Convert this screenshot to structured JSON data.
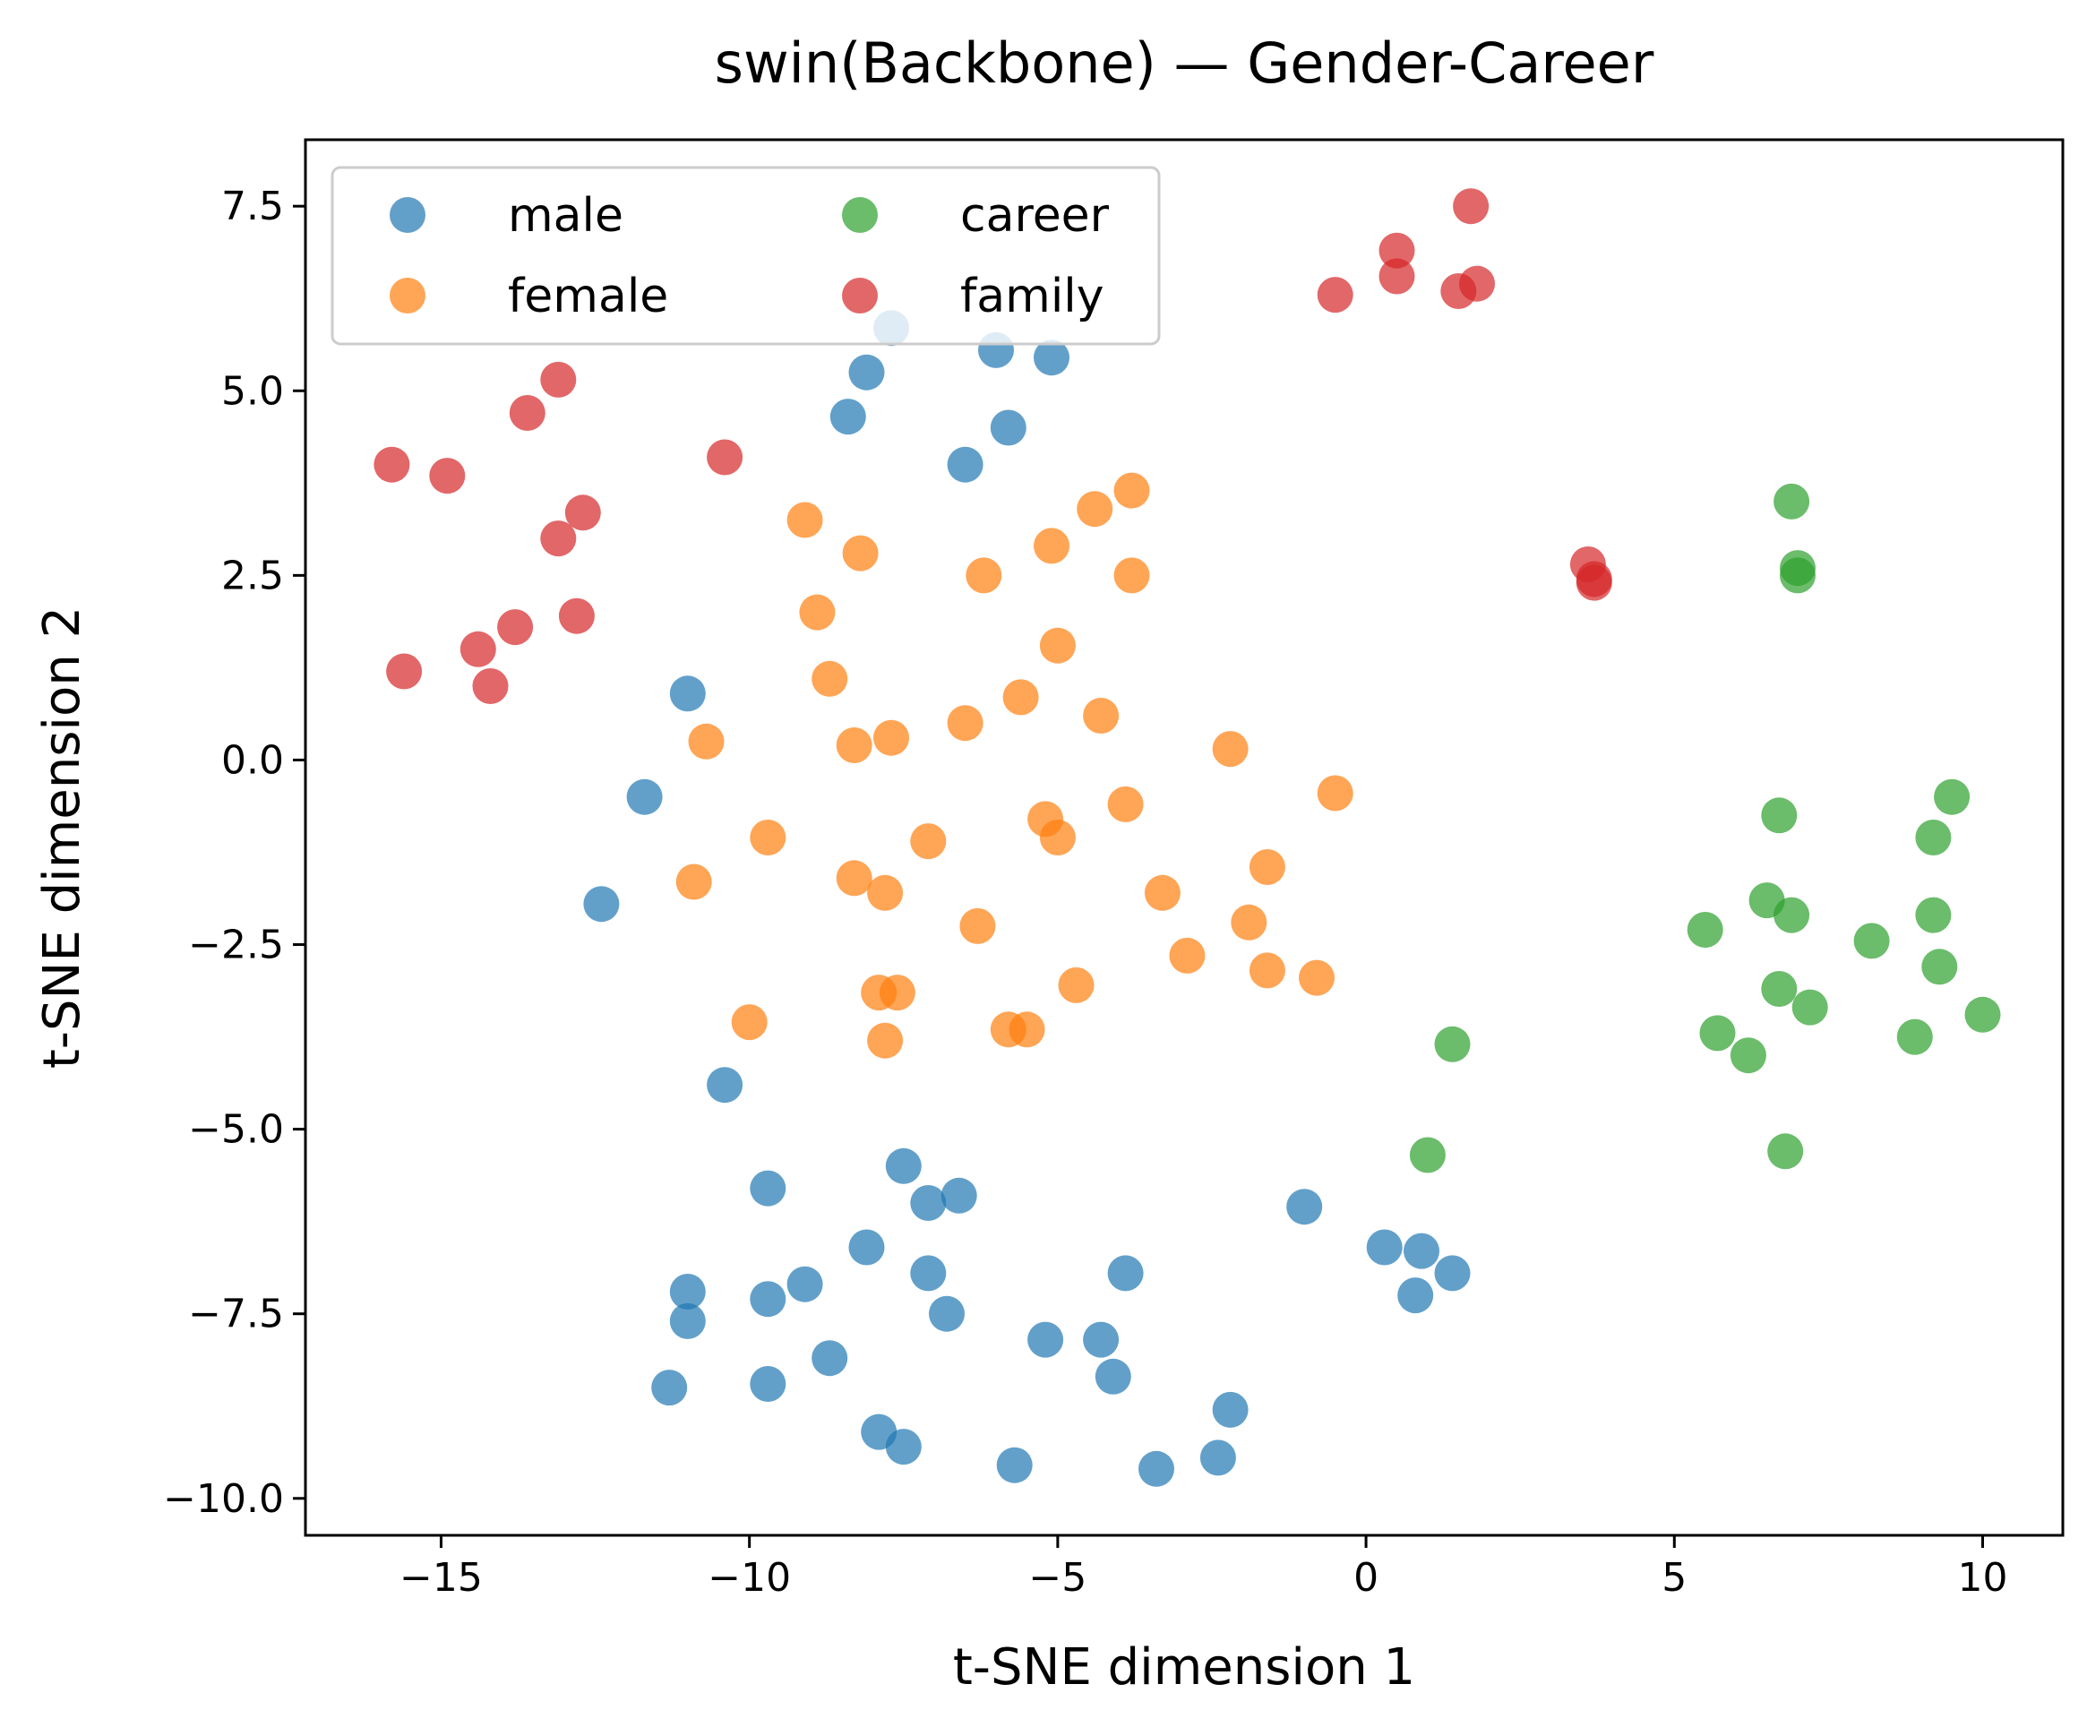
{
  "chart_data": {
    "type": "scatter",
    "title": "swin(Backbone) — Gender-Career",
    "xlabel": "t-SNE dimension 1",
    "ylabel": "t-SNE dimension 2",
    "xlim": [
      -17.2,
      11.3
    ],
    "ylim": [
      -10.5,
      8.4
    ],
    "xticks": [
      -15,
      -10,
      -5,
      0,
      5,
      10
    ],
    "yticks": [
      -10.0,
      -7.5,
      -5.0,
      -2.5,
      0.0,
      2.5,
      5.0,
      7.5
    ],
    "xtick_labels": [
      "−15",
      "−10",
      "−5",
      "0",
      "5",
      "10"
    ],
    "ytick_labels": [
      "−10.0",
      "−7.5",
      "−5.0",
      "−2.5",
      "0.0",
      "2.5",
      "5.0",
      "7.5"
    ],
    "grid": false,
    "legend_placement": "upper-left",
    "legend_columns": 2,
    "series": [
      {
        "name": "male",
        "color": "#1f77b4",
        "points": [
          [
            -7.7,
            5.85
          ],
          [
            -8.1,
            5.25
          ],
          [
            -6.0,
            5.55
          ],
          [
            -5.1,
            5.45
          ],
          [
            -8.4,
            4.65
          ],
          [
            -5.8,
            4.5
          ],
          [
            -6.5,
            4.0
          ],
          [
            -11.0,
            0.9
          ],
          [
            -11.7,
            -0.5
          ],
          [
            -12.4,
            -1.95
          ],
          [
            -10.4,
            -4.4
          ],
          [
            -9.7,
            -5.8
          ],
          [
            -7.5,
            -5.5
          ],
          [
            -7.1,
            -6.0
          ],
          [
            -6.6,
            -5.9
          ],
          [
            -8.1,
            -6.6
          ],
          [
            -7.1,
            -6.95
          ],
          [
            -6.8,
            -7.5
          ],
          [
            -11.0,
            -7.2
          ],
          [
            -9.7,
            -7.3
          ],
          [
            -9.1,
            -7.1
          ],
          [
            -11.0,
            -7.6
          ],
          [
            -8.7,
            -8.1
          ],
          [
            -11.3,
            -8.5
          ],
          [
            -9.7,
            -8.45
          ],
          [
            -7.9,
            -9.1
          ],
          [
            -7.5,
            -9.3
          ],
          [
            -5.7,
            -9.55
          ],
          [
            -5.2,
            -7.85
          ],
          [
            -4.3,
            -7.85
          ],
          [
            -3.9,
            -6.95
          ],
          [
            -4.1,
            -8.35
          ],
          [
            -3.4,
            -9.6
          ],
          [
            -2.2,
            -8.8
          ],
          [
            -2.4,
            -9.45
          ],
          [
            -1.0,
            -6.05
          ],
          [
            0.3,
            -6.6
          ],
          [
            0.9,
            -6.65
          ],
          [
            0.8,
            -7.25
          ],
          [
            1.4,
            -6.95
          ]
        ]
      },
      {
        "name": "female",
        "color": "#ff7f0e",
        "points": [
          [
            -9.1,
            3.25
          ],
          [
            -8.2,
            2.8
          ],
          [
            -6.2,
            2.5
          ],
          [
            -5.1,
            2.9
          ],
          [
            -4.4,
            3.4
          ],
          [
            -3.8,
            3.65
          ],
          [
            -3.8,
            2.5
          ],
          [
            -8.9,
            2.0
          ],
          [
            -8.7,
            1.1
          ],
          [
            -5.0,
            1.55
          ],
          [
            -5.6,
            0.85
          ],
          [
            -4.3,
            0.6
          ],
          [
            -10.7,
            0.25
          ],
          [
            -8.3,
            0.2
          ],
          [
            -7.7,
            0.3
          ],
          [
            -6.5,
            0.5
          ],
          [
            -2.2,
            0.15
          ],
          [
            -0.5,
            -0.45
          ],
          [
            -9.7,
            -1.05
          ],
          [
            -7.1,
            -1.1
          ],
          [
            -5.2,
            -0.8
          ],
          [
            -5.0,
            -1.05
          ],
          [
            -3.9,
            -0.6
          ],
          [
            -10.9,
            -1.65
          ],
          [
            -8.3,
            -1.6
          ],
          [
            -7.8,
            -1.8
          ],
          [
            -3.3,
            -1.8
          ],
          [
            -1.6,
            -1.45
          ],
          [
            -6.3,
            -2.25
          ],
          [
            -1.9,
            -2.2
          ],
          [
            -2.9,
            -2.65
          ],
          [
            -1.6,
            -2.85
          ],
          [
            -0.8,
            -2.95
          ],
          [
            -7.9,
            -3.15
          ],
          [
            -7.6,
            -3.15
          ],
          [
            -4.7,
            -3.05
          ],
          [
            -10.0,
            -3.55
          ],
          [
            -7.8,
            -3.8
          ],
          [
            -5.8,
            -3.65
          ],
          [
            -5.5,
            -3.65
          ]
        ]
      },
      {
        "name": "career",
        "color": "#2ca02c",
        "points": [
          [
            6.9,
            3.5
          ],
          [
            7.0,
            2.6
          ],
          [
            7.0,
            2.5
          ],
          [
            9.5,
            -0.5
          ],
          [
            6.7,
            -0.75
          ],
          [
            9.2,
            -1.05
          ],
          [
            6.5,
            -1.9
          ],
          [
            6.9,
            -2.1
          ],
          [
            9.2,
            -2.1
          ],
          [
            5.5,
            -2.3
          ],
          [
            8.2,
            -2.45
          ],
          [
            9.3,
            -2.8
          ],
          [
            6.7,
            -3.1
          ],
          [
            7.2,
            -3.35
          ],
          [
            10.0,
            -3.45
          ],
          [
            5.7,
            -3.7
          ],
          [
            8.9,
            -3.75
          ],
          [
            1.4,
            -3.85
          ],
          [
            6.2,
            -4.0
          ],
          [
            1.0,
            -5.35
          ],
          [
            6.8,
            -5.3
          ]
        ]
      },
      {
        "name": "family",
        "color": "#d62728",
        "points": [
          [
            1.7,
            7.5
          ],
          [
            0.5,
            6.9
          ],
          [
            0.5,
            6.55
          ],
          [
            1.5,
            6.35
          ],
          [
            1.8,
            6.45
          ],
          [
            -0.5,
            6.3
          ],
          [
            -13.1,
            5.15
          ],
          [
            -13.6,
            4.7
          ],
          [
            -10.4,
            4.1
          ],
          [
            -15.8,
            4.0
          ],
          [
            -14.9,
            3.85
          ],
          [
            -12.7,
            3.35
          ],
          [
            -13.1,
            3.0
          ],
          [
            -12.8,
            1.95
          ],
          [
            -13.8,
            1.8
          ],
          [
            -14.4,
            1.5
          ],
          [
            -14.2,
            1.0
          ],
          [
            -15.6,
            1.2
          ],
          [
            3.6,
            2.65
          ],
          [
            3.7,
            2.45
          ],
          [
            3.7,
            2.4
          ]
        ]
      }
    ]
  }
}
